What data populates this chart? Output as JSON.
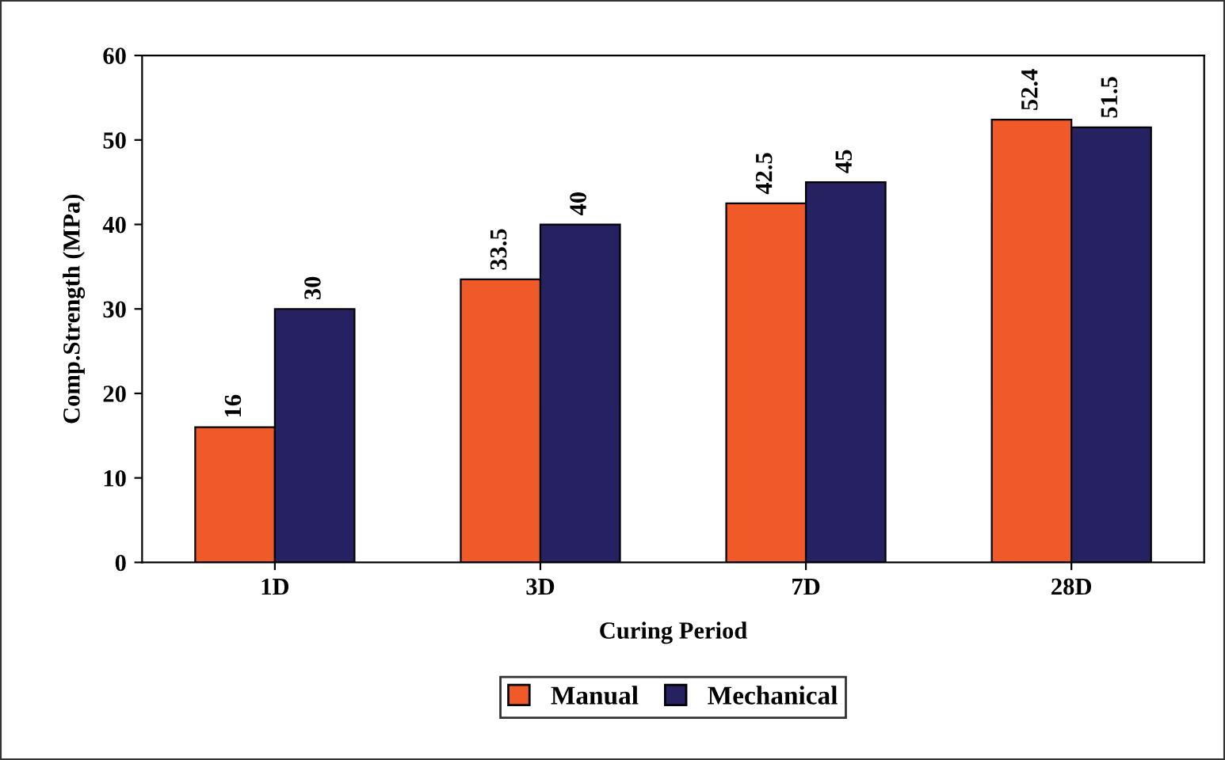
{
  "chart_data": {
    "type": "bar",
    "xlabel": "Curing Period",
    "ylabel": "Comp.Strength (MPa)",
    "categories": [
      "1D",
      "3D",
      "7D",
      "28D"
    ],
    "series": [
      {
        "name": "Manual",
        "color": "#f05a28",
        "values": [
          16,
          33.5,
          42.5,
          52.4
        ]
      },
      {
        "name": "Mechanical",
        "color": "#262262",
        "values": [
          30,
          40,
          45,
          51.5
        ]
      }
    ],
    "ylim": [
      0,
      60
    ],
    "yticks": [
      0,
      10,
      20,
      30,
      40,
      50,
      60
    ],
    "data_labels": true,
    "legend": "bottom",
    "grid": false
  }
}
